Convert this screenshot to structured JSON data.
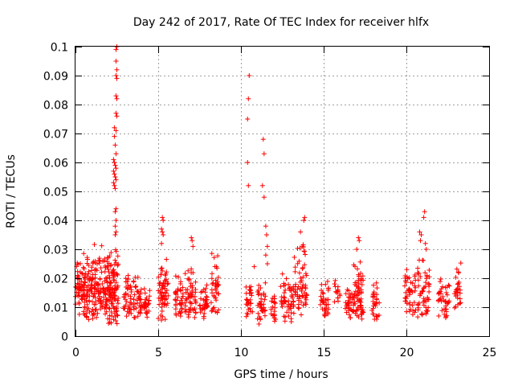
{
  "chart_data": {
    "type": "scatter",
    "title": "Day 242 of 2017, Rate Of TEC Index for receiver hlfx",
    "xlabel": "GPS time / hours",
    "ylabel": "ROTI / TECUs",
    "xlim": [
      0,
      25
    ],
    "ylim": [
      0,
      0.1
    ],
    "xticks": [
      "0",
      "5",
      "10",
      "15",
      "20",
      "25"
    ],
    "yticks": [
      "0",
      "0.01",
      "0.02",
      "0.03",
      "0.04",
      "0.05",
      "0.06",
      "0.07",
      "0.08",
      "0.09",
      "0.1"
    ],
    "grid": true,
    "marker": "+",
    "color": "#ff0000",
    "clusters": [
      {
        "x": [
          0,
          0.6
        ],
        "ymin": 0.006,
        "ymax": 0.032,
        "n": 60
      },
      {
        "x": [
          0.5,
          1.2
        ],
        "ymin": 0.005,
        "ymax": 0.033,
        "n": 90
      },
      {
        "x": [
          1.2,
          2.0
        ],
        "ymin": 0.005,
        "ymax": 0.032,
        "n": 90
      },
      {
        "x": [
          2.0,
          2.6
        ],
        "ymin": 0.004,
        "ymax": 0.033,
        "n": 100
      },
      {
        "x": [
          2.9,
          3.4
        ],
        "ymin": 0.006,
        "ymax": 0.023,
        "n": 40
      },
      {
        "x": [
          3.5,
          4.0
        ],
        "ymin": 0.006,
        "ymax": 0.024,
        "n": 40
      },
      {
        "x": [
          4.1,
          4.5
        ],
        "ymin": 0.006,
        "ymax": 0.018,
        "n": 30
      },
      {
        "x": [
          5.0,
          5.6
        ],
        "ymin": 0.005,
        "ymax": 0.028,
        "n": 60
      },
      {
        "x": [
          6.0,
          6.5
        ],
        "ymin": 0.006,
        "ymax": 0.023,
        "n": 40
      },
      {
        "x": [
          6.6,
          7.3
        ],
        "ymin": 0.006,
        "ymax": 0.025,
        "n": 55
      },
      {
        "x": [
          7.5,
          8.0
        ],
        "ymin": 0.006,
        "ymax": 0.02,
        "n": 35
      },
      {
        "x": [
          8.2,
          8.7
        ],
        "ymin": 0.007,
        "ymax": 0.031,
        "n": 40
      },
      {
        "x": [
          10.3,
          10.7
        ],
        "ymin": 0.006,
        "ymax": 0.019,
        "n": 30
      },
      {
        "x": [
          11.0,
          11.5
        ],
        "ymin": 0.004,
        "ymax": 0.02,
        "n": 40
      },
      {
        "x": [
          11.8,
          12.1
        ],
        "ymin": 0.005,
        "ymax": 0.016,
        "n": 20
      },
      {
        "x": [
          12.4,
          13.2
        ],
        "ymin": 0.004,
        "ymax": 0.022,
        "n": 55
      },
      {
        "x": [
          13.2,
          14.0
        ],
        "ymin": 0.006,
        "ymax": 0.033,
        "n": 60
      },
      {
        "x": [
          14.8,
          15.3
        ],
        "ymin": 0.006,
        "ymax": 0.02,
        "n": 35
      },
      {
        "x": [
          15.6,
          16.0
        ],
        "ymin": 0.01,
        "ymax": 0.02,
        "n": 15
      },
      {
        "x": [
          16.3,
          16.8
        ],
        "ymin": 0.006,
        "ymax": 0.02,
        "n": 30
      },
      {
        "x": [
          16.8,
          17.4
        ],
        "ymin": 0.005,
        "ymax": 0.028,
        "n": 70
      },
      {
        "x": [
          17.9,
          18.4
        ],
        "ymin": 0.005,
        "ymax": 0.02,
        "n": 30
      },
      {
        "x": [
          19.9,
          20.6
        ],
        "ymin": 0.006,
        "ymax": 0.025,
        "n": 45
      },
      {
        "x": [
          20.6,
          21.4
        ],
        "ymin": 0.006,
        "ymax": 0.028,
        "n": 55
      },
      {
        "x": [
          21.9,
          22.6
        ],
        "ymin": 0.006,
        "ymax": 0.022,
        "n": 40
      },
      {
        "x": [
          22.9,
          23.3
        ],
        "ymin": 0.007,
        "ymax": 0.028,
        "n": 30
      }
    ],
    "outliers": [
      [
        2.45,
        0.099
      ],
      [
        2.5,
        0.1
      ],
      [
        2.45,
        0.095
      ],
      [
        2.5,
        0.092
      ],
      [
        2.45,
        0.09
      ],
      [
        2.5,
        0.089
      ],
      [
        2.45,
        0.083
      ],
      [
        2.5,
        0.082
      ],
      [
        2.45,
        0.077
      ],
      [
        2.5,
        0.076
      ],
      [
        2.35,
        0.072
      ],
      [
        2.45,
        0.071
      ],
      [
        2.35,
        0.069
      ],
      [
        2.4,
        0.066
      ],
      [
        2.45,
        0.063
      ],
      [
        2.3,
        0.061
      ],
      [
        2.35,
        0.06
      ],
      [
        2.4,
        0.059
      ],
      [
        2.45,
        0.058
      ],
      [
        2.3,
        0.057
      ],
      [
        2.35,
        0.056
      ],
      [
        2.4,
        0.055
      ],
      [
        2.45,
        0.054
      ],
      [
        2.3,
        0.053
      ],
      [
        2.35,
        0.052
      ],
      [
        2.4,
        0.051
      ],
      [
        2.45,
        0.044
      ],
      [
        2.4,
        0.043
      ],
      [
        2.45,
        0.04
      ],
      [
        2.4,
        0.038
      ],
      [
        2.45,
        0.036
      ],
      [
        2.4,
        0.035
      ],
      [
        5.25,
        0.041
      ],
      [
        5.3,
        0.04
      ],
      [
        5.2,
        0.037
      ],
      [
        5.25,
        0.036
      ],
      [
        5.3,
        0.035
      ],
      [
        5.2,
        0.032
      ],
      [
        7.0,
        0.034
      ],
      [
        7.05,
        0.033
      ],
      [
        7.1,
        0.031
      ],
      [
        10.5,
        0.09
      ],
      [
        10.45,
        0.082
      ],
      [
        10.4,
        0.075
      ],
      [
        10.4,
        0.06
      ],
      [
        10.45,
        0.052
      ],
      [
        10.8,
        0.024
      ],
      [
        11.35,
        0.068
      ],
      [
        11.4,
        0.063
      ],
      [
        11.3,
        0.052
      ],
      [
        11.4,
        0.048
      ],
      [
        11.5,
        0.038
      ],
      [
        11.55,
        0.035
      ],
      [
        11.6,
        0.031
      ],
      [
        11.5,
        0.028
      ],
      [
        11.6,
        0.025
      ],
      [
        13.85,
        0.041
      ],
      [
        13.8,
        0.04
      ],
      [
        13.6,
        0.036
      ],
      [
        13.7,
        0.031
      ],
      [
        17.1,
        0.034
      ],
      [
        17.15,
        0.033
      ],
      [
        17.0,
        0.03
      ],
      [
        20.8,
        0.036
      ],
      [
        20.85,
        0.033
      ],
      [
        21.1,
        0.043
      ],
      [
        21.05,
        0.041
      ],
      [
        20.9,
        0.035
      ],
      [
        21.15,
        0.032
      ],
      [
        21.2,
        0.03
      ]
    ]
  }
}
